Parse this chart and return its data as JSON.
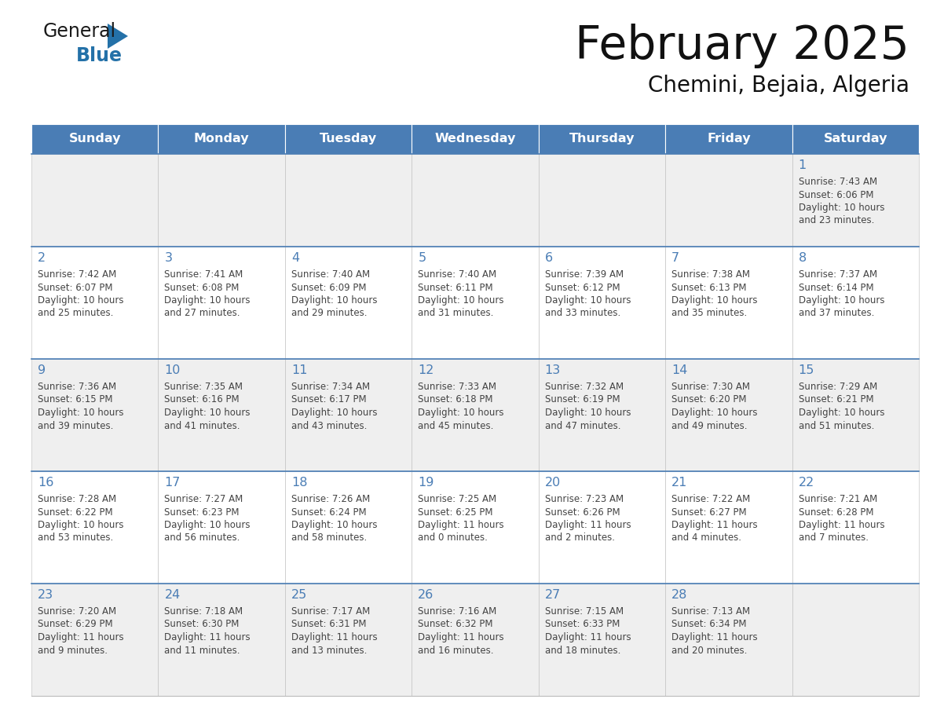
{
  "title": "February 2025",
  "subtitle": "Chemini, Bejaia, Algeria",
  "days_of_week": [
    "Sunday",
    "Monday",
    "Tuesday",
    "Wednesday",
    "Thursday",
    "Friday",
    "Saturday"
  ],
  "header_bg": "#4a7db5",
  "header_text": "#ffffff",
  "row_bg_even": "#efefef",
  "row_bg_odd": "#ffffff",
  "cell_border_color": "#bbbbbb",
  "row_border_color": "#4a7db5",
  "day_num_color": "#4a7db5",
  "info_color": "#444444",
  "calendar_data": [
    [
      null,
      null,
      null,
      null,
      null,
      null,
      {
        "day": "1",
        "sunrise": "7:43 AM",
        "sunset": "6:06 PM",
        "daylight_line1": "Daylight: 10 hours",
        "daylight_line2": "and 23 minutes."
      }
    ],
    [
      {
        "day": "2",
        "sunrise": "7:42 AM",
        "sunset": "6:07 PM",
        "daylight_line1": "Daylight: 10 hours",
        "daylight_line2": "and 25 minutes."
      },
      {
        "day": "3",
        "sunrise": "7:41 AM",
        "sunset": "6:08 PM",
        "daylight_line1": "Daylight: 10 hours",
        "daylight_line2": "and 27 minutes."
      },
      {
        "day": "4",
        "sunrise": "7:40 AM",
        "sunset": "6:09 PM",
        "daylight_line1": "Daylight: 10 hours",
        "daylight_line2": "and 29 minutes."
      },
      {
        "day": "5",
        "sunrise": "7:40 AM",
        "sunset": "6:11 PM",
        "daylight_line1": "Daylight: 10 hours",
        "daylight_line2": "and 31 minutes."
      },
      {
        "day": "6",
        "sunrise": "7:39 AM",
        "sunset": "6:12 PM",
        "daylight_line1": "Daylight: 10 hours",
        "daylight_line2": "and 33 minutes."
      },
      {
        "day": "7",
        "sunrise": "7:38 AM",
        "sunset": "6:13 PM",
        "daylight_line1": "Daylight: 10 hours",
        "daylight_line2": "and 35 minutes."
      },
      {
        "day": "8",
        "sunrise": "7:37 AM",
        "sunset": "6:14 PM",
        "daylight_line1": "Daylight: 10 hours",
        "daylight_line2": "and 37 minutes."
      }
    ],
    [
      {
        "day": "9",
        "sunrise": "7:36 AM",
        "sunset": "6:15 PM",
        "daylight_line1": "Daylight: 10 hours",
        "daylight_line2": "and 39 minutes."
      },
      {
        "day": "10",
        "sunrise": "7:35 AM",
        "sunset": "6:16 PM",
        "daylight_line1": "Daylight: 10 hours",
        "daylight_line2": "and 41 minutes."
      },
      {
        "day": "11",
        "sunrise": "7:34 AM",
        "sunset": "6:17 PM",
        "daylight_line1": "Daylight: 10 hours",
        "daylight_line2": "and 43 minutes."
      },
      {
        "day": "12",
        "sunrise": "7:33 AM",
        "sunset": "6:18 PM",
        "daylight_line1": "Daylight: 10 hours",
        "daylight_line2": "and 45 minutes."
      },
      {
        "day": "13",
        "sunrise": "7:32 AM",
        "sunset": "6:19 PM",
        "daylight_line1": "Daylight: 10 hours",
        "daylight_line2": "and 47 minutes."
      },
      {
        "day": "14",
        "sunrise": "7:30 AM",
        "sunset": "6:20 PM",
        "daylight_line1": "Daylight: 10 hours",
        "daylight_line2": "and 49 minutes."
      },
      {
        "day": "15",
        "sunrise": "7:29 AM",
        "sunset": "6:21 PM",
        "daylight_line1": "Daylight: 10 hours",
        "daylight_line2": "and 51 minutes."
      }
    ],
    [
      {
        "day": "16",
        "sunrise": "7:28 AM",
        "sunset": "6:22 PM",
        "daylight_line1": "Daylight: 10 hours",
        "daylight_line2": "and 53 minutes."
      },
      {
        "day": "17",
        "sunrise": "7:27 AM",
        "sunset": "6:23 PM",
        "daylight_line1": "Daylight: 10 hours",
        "daylight_line2": "and 56 minutes."
      },
      {
        "day": "18",
        "sunrise": "7:26 AM",
        "sunset": "6:24 PM",
        "daylight_line1": "Daylight: 10 hours",
        "daylight_line2": "and 58 minutes."
      },
      {
        "day": "19",
        "sunrise": "7:25 AM",
        "sunset": "6:25 PM",
        "daylight_line1": "Daylight: 11 hours",
        "daylight_line2": "and 0 minutes."
      },
      {
        "day": "20",
        "sunrise": "7:23 AM",
        "sunset": "6:26 PM",
        "daylight_line1": "Daylight: 11 hours",
        "daylight_line2": "and 2 minutes."
      },
      {
        "day": "21",
        "sunrise": "7:22 AM",
        "sunset": "6:27 PM",
        "daylight_line1": "Daylight: 11 hours",
        "daylight_line2": "and 4 minutes."
      },
      {
        "day": "22",
        "sunrise": "7:21 AM",
        "sunset": "6:28 PM",
        "daylight_line1": "Daylight: 11 hours",
        "daylight_line2": "and 7 minutes."
      }
    ],
    [
      {
        "day": "23",
        "sunrise": "7:20 AM",
        "sunset": "6:29 PM",
        "daylight_line1": "Daylight: 11 hours",
        "daylight_line2": "and 9 minutes."
      },
      {
        "day": "24",
        "sunrise": "7:18 AM",
        "sunset": "6:30 PM",
        "daylight_line1": "Daylight: 11 hours",
        "daylight_line2": "and 11 minutes."
      },
      {
        "day": "25",
        "sunrise": "7:17 AM",
        "sunset": "6:31 PM",
        "daylight_line1": "Daylight: 11 hours",
        "daylight_line2": "and 13 minutes."
      },
      {
        "day": "26",
        "sunrise": "7:16 AM",
        "sunset": "6:32 PM",
        "daylight_line1": "Daylight: 11 hours",
        "daylight_line2": "and 16 minutes."
      },
      {
        "day": "27",
        "sunrise": "7:15 AM",
        "sunset": "6:33 PM",
        "daylight_line1": "Daylight: 11 hours",
        "daylight_line2": "and 18 minutes."
      },
      {
        "day": "28",
        "sunrise": "7:13 AM",
        "sunset": "6:34 PM",
        "daylight_line1": "Daylight: 11 hours",
        "daylight_line2": "and 20 minutes."
      },
      null
    ]
  ],
  "logo_text_general": "General",
  "logo_text_blue": "Blue",
  "logo_color_general": "#1a1a1a",
  "logo_color_blue": "#2471a8",
  "logo_triangle_color": "#2471a8"
}
